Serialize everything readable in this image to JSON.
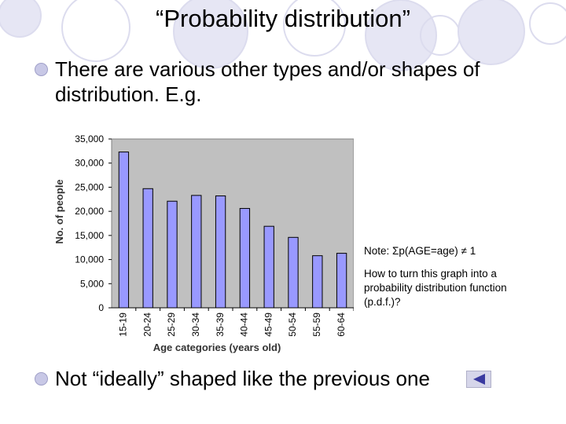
{
  "slide": {
    "title": "“Probability distribution”",
    "bullet1": "There are various other types and/or shapes of distribution. E.g.",
    "bullet2": "Not “ideally” shaped like the previous one",
    "note1": "Note: Σp(AGE=age) ≠ 1",
    "note2": "How to turn this graph into a probability distribution function (p.d.f.)?",
    "back_icon": "back-arrow-icon"
  },
  "colors": {
    "bar_fill": "#9999ff",
    "plot_bg": "#c0c0c0",
    "bullet": "#c8c8e6",
    "deco": "#e0e0f0"
  },
  "chart_data": {
    "type": "bar",
    "categories": [
      "15-19",
      "20-24",
      "25-29",
      "30-34",
      "35-39",
      "40-44",
      "45-49",
      "50-54",
      "55-59",
      "60-64"
    ],
    "values": [
      32300,
      24700,
      22100,
      23300,
      23200,
      20600,
      16900,
      14600,
      10800,
      11300
    ],
    "ylim": [
      0,
      35000
    ],
    "yticks": [
      "0",
      "5,000",
      "10,000",
      "15,000",
      "20,000",
      "25,000",
      "30,000",
      "35,000"
    ],
    "xlabel": "Age categories (years old)",
    "ylabel": "No. of people",
    "grid": false,
    "legend": "none"
  }
}
